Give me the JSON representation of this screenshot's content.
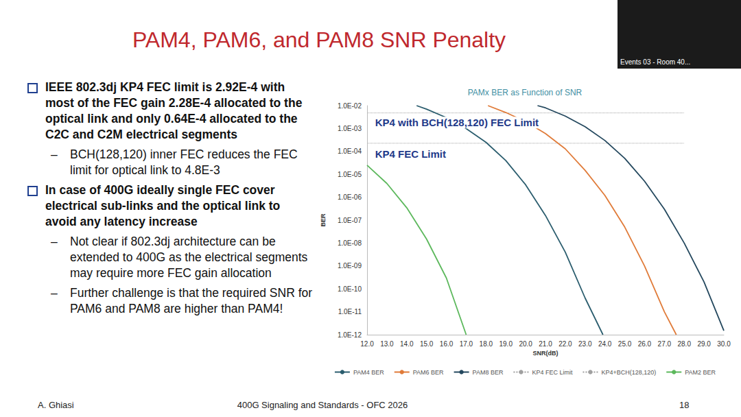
{
  "slide": {
    "title": "PAM4, PAM6, and PAM8 SNR Penalty",
    "bullets": [
      {
        "text": "IEEE 802.3dj KP4 FEC limit is 2.92E-4 with most of the FEC gain 2.28E-4 allocated to the optical link and only 0.64E-4 allocated to the C2C and C2M electrical segments",
        "sub": [
          "BCH(128,120) inner FEC reduces the FEC limit for optical link to 4.8E-3"
        ]
      },
      {
        "text": "In case of 400G ideally single FEC cover electrical sub-links and the optical link to avoid any latency increase",
        "sub": [
          "Not clear if 802.3dj architecture can be extended to 400G as the electrical segments may require more FEC gain allocation",
          "Further challenge is that the required SNR for PAM6 and PAM8 are higher than PAM4!"
        ]
      }
    ],
    "footer": {
      "author": "A. Ghiasi",
      "center": "400G Signaling and Standards - OFC 2026",
      "page": "18"
    },
    "video_label": "Events 03 - Room 40..."
  },
  "chart_data": {
    "type": "line",
    "title": "PAMx BER as Function of SNR",
    "x_label": "SNR(dB)",
    "y_label": "BER",
    "log": "y",
    "grid": false,
    "legend": "bottom",
    "marker": "none",
    "xlim": [
      12,
      30
    ],
    "xticks": [
      {
        "value": 12,
        "label": "12.0"
      },
      {
        "value": 13,
        "label": "13.0"
      },
      {
        "value": 14,
        "label": "14.0"
      },
      {
        "value": 15,
        "label": "15.0"
      },
      {
        "value": 16,
        "label": "16.0"
      },
      {
        "value": 17,
        "label": "17.0"
      },
      {
        "value": 18,
        "label": "18.0"
      },
      {
        "value": 19,
        "label": "19.0"
      },
      {
        "value": 20,
        "label": "20.0"
      },
      {
        "value": 21,
        "label": "21.0"
      },
      {
        "value": 22,
        "label": "22.0"
      },
      {
        "value": 23,
        "label": "23.0"
      },
      {
        "value": 24,
        "label": "24.0"
      },
      {
        "value": 25,
        "label": "25.0"
      },
      {
        "value": 26,
        "label": "26.0"
      },
      {
        "value": 27,
        "label": "27.0"
      },
      {
        "value": 28,
        "label": "28.0"
      },
      {
        "value": 29,
        "label": "29.0"
      },
      {
        "value": 30,
        "label": "30.0"
      }
    ],
    "ylim": [
      1e-12,
      0.01
    ],
    "yticks": [
      {
        "value": 1e-12,
        "label": "1.0E-12"
      },
      {
        "value": 1e-11,
        "label": "1.0E-11"
      },
      {
        "value": 1e-10,
        "label": "1.0E-10"
      },
      {
        "value": 1e-09,
        "label": "1.0E-09"
      },
      {
        "value": 1e-08,
        "label": "1.0E-08"
      },
      {
        "value": 1e-07,
        "label": "1.0E-07"
      },
      {
        "value": 1e-06,
        "label": "1.0E-06"
      },
      {
        "value": 1e-05,
        "label": "1.0E-05"
      },
      {
        "value": 0.0001,
        "label": "1.0E-04"
      },
      {
        "value": 0.001,
        "label": "1.0E-03"
      },
      {
        "value": 0.01,
        "label": "1.0E-02"
      }
    ],
    "series": [
      {
        "name": "PAM4 BER",
        "color": "#2b5d6e",
        "line_style": "solid",
        "x": [
          14.5,
          15,
          16,
          17,
          18,
          19,
          20,
          21,
          22,
          23,
          23.9
        ],
        "values": [
          0.01,
          0.007,
          0.003,
          0.001,
          0.00025,
          4e-05,
          3.5e-06,
          1.6e-07,
          4e-09,
          4e-11,
          1e-12
        ]
      },
      {
        "name": "PAM6 BER",
        "color": "#e07b39",
        "line_style": "solid",
        "x": [
          18.1,
          19,
          20,
          21,
          22,
          23,
          24,
          25,
          26,
          27,
          27.6
        ],
        "values": [
          0.01,
          0.005,
          0.002,
          0.0006,
          0.00013,
          1.5e-05,
          1.2e-06,
          5e-08,
          1e-09,
          1e-11,
          1e-12
        ]
      },
      {
        "name": "PAM8 BER",
        "color": "#24485e",
        "line_style": "solid",
        "x": [
          20.6,
          21,
          22,
          23,
          24,
          25,
          26,
          27,
          28,
          29,
          30
        ],
        "values": [
          0.01,
          0.008,
          0.0035,
          0.0012,
          0.0003,
          5e-05,
          5e-06,
          3e-07,
          1e-08,
          2e-10,
          1.5e-12
        ]
      },
      {
        "name": "KP4 FEC Limit",
        "color": "#a0a0a0",
        "line_style": "dotted",
        "x": [
          12,
          28
        ],
        "values": [
          0.000228,
          0.000228
        ]
      },
      {
        "name": "KP4+BCH(128,120)",
        "color": "#a0a0a0",
        "line_style": "dotted",
        "x": [
          12,
          28
        ],
        "values": [
          0.0048,
          0.0048
        ]
      },
      {
        "name": "PAM2 BER",
        "color": "#5cb85c",
        "line_style": "solid",
        "x": [
          12,
          13,
          14,
          15,
          16,
          17
        ],
        "values": [
          2.5e-05,
          4e-06,
          3.5e-07,
          1.5e-08,
          3e-10,
          1e-12
        ]
      }
    ],
    "annotations": [
      {
        "text": "KP4 with BCH(128,120) FEC Limit",
        "x": 12.3,
        "y": 0.0018
      },
      {
        "text": "KP4 FEC Limit",
        "x": 12.3,
        "y": 8e-05
      }
    ]
  }
}
